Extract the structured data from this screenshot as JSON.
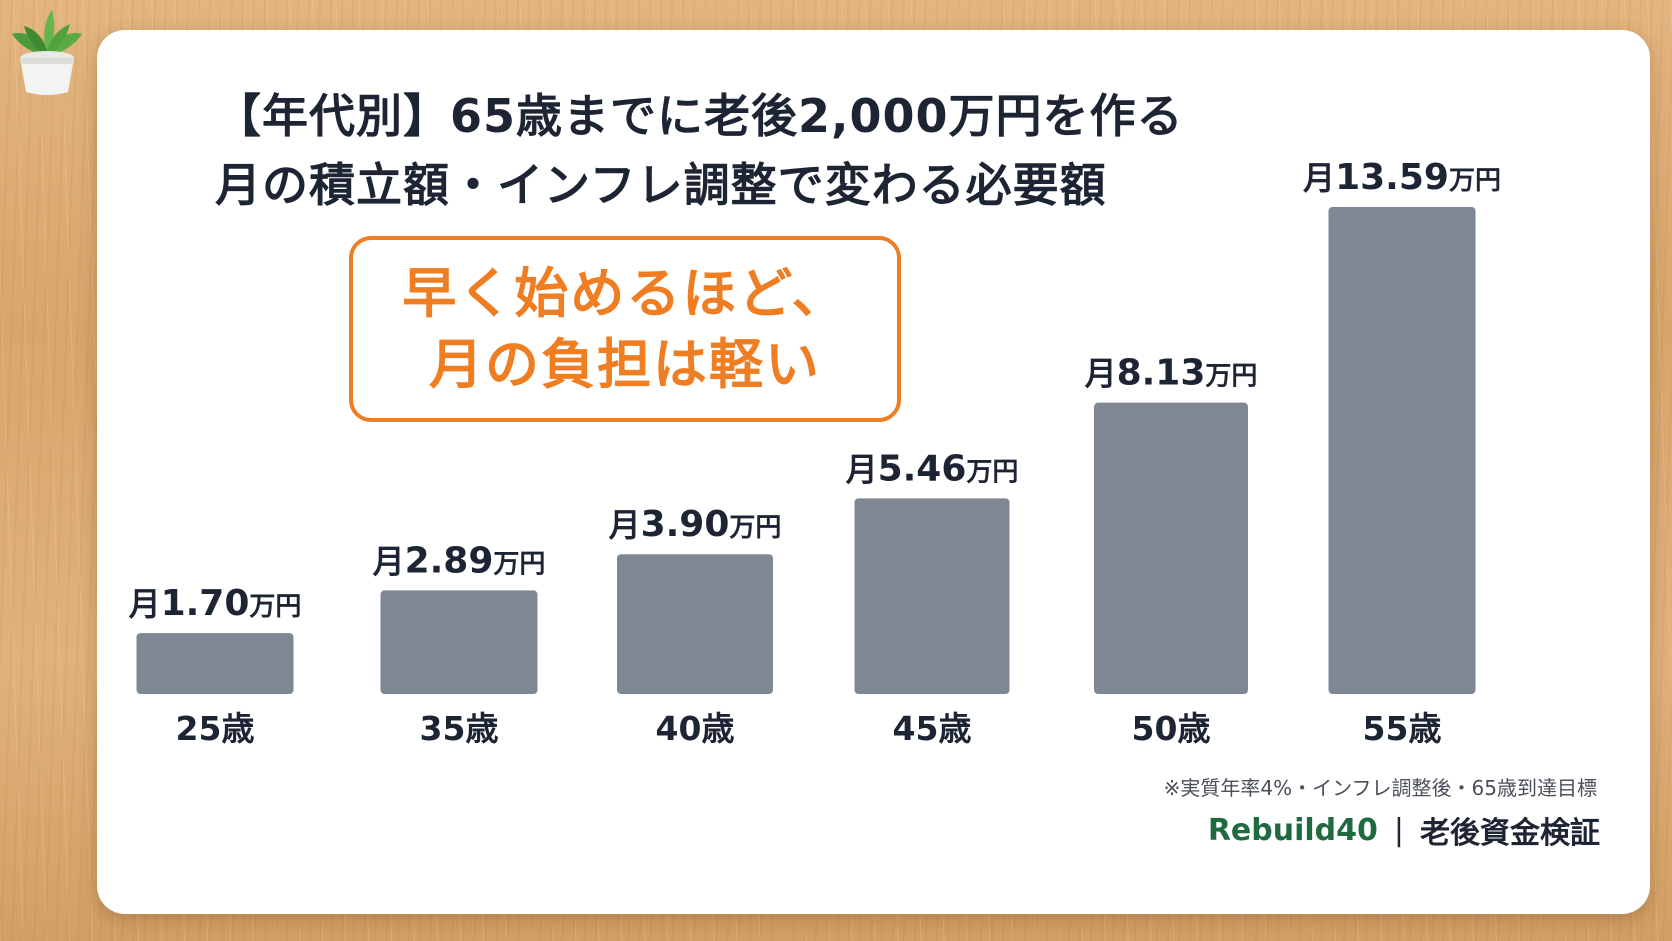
{
  "title": {
    "line1": "【年代別】65歳までに老後2,000万円を作る",
    "line2": "月の積立額・インフレ調整で変わる必要額"
  },
  "callout": {
    "line1": "早く始めるほど、",
    "line2": "月の負担は軽い",
    "color": "#ef7d22"
  },
  "chart_data": {
    "type": "bar",
    "categories": [
      "25歳",
      "35歳",
      "40歳",
      "45歳",
      "50歳",
      "55歳"
    ],
    "values": [
      1.7,
      2.89,
      3.9,
      5.46,
      8.13,
      13.59
    ],
    "data_labels": [
      {
        "prefix": "月",
        "value": "1.70",
        "unit": "万円"
      },
      {
        "prefix": "月",
        "value": "2.89",
        "unit": "万円"
      },
      {
        "prefix": "月",
        "value": "3.90",
        "unit": "万円"
      },
      {
        "prefix": "月",
        "value": "5.46",
        "unit": "万円"
      },
      {
        "prefix": "月",
        "value": "8.13",
        "unit": "万円"
      },
      {
        "prefix": "月",
        "value": "13.59",
        "unit": "万円"
      }
    ],
    "bar_color": "#7e8793",
    "grid": false,
    "ylim": [
      0,
      13.59
    ]
  },
  "footnote": "※実質年率4%・インフレ調整後・65歳到達目標",
  "brand": {
    "name": "Rebuild40",
    "separator": "|",
    "subtitle": "老後資金検証",
    "color": "#1f6b3f"
  },
  "decoration": {
    "icon": "potted-plant-icon"
  }
}
